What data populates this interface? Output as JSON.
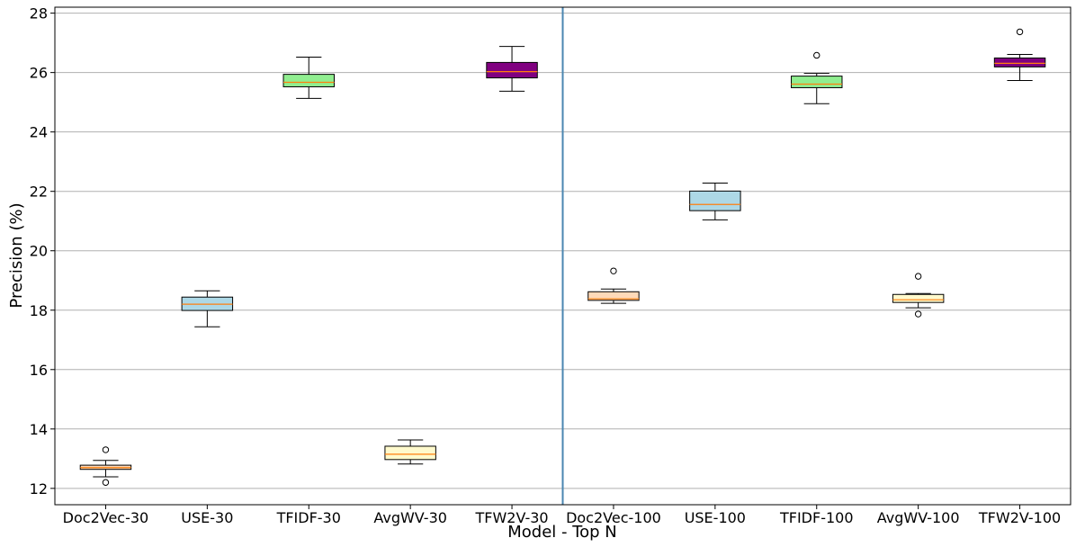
{
  "chart_data": {
    "type": "box",
    "x_label": "Model - Top N",
    "y_label": "Precision (%)",
    "categories": [
      "Doc2Vec-30",
      "USE-30",
      "TFIDF-30",
      "AvgWV-30",
      "TFW2V-30",
      "Doc2Vec-100",
      "USE-100",
      "TFIDF-100",
      "AvgWV-100",
      "TFW2V-100"
    ],
    "colors": [
      "#ffdab9",
      "#add8e6",
      "#90ee90",
      "#fffacd",
      "#800080",
      "#ffdab9",
      "#add8e6",
      "#90ee90",
      "#fffacd",
      "#800080"
    ],
    "median_color": "#ff7f0e",
    "boxes": [
      {
        "whislo": 12.39,
        "q1": 12.64,
        "median": 12.7,
        "q3": 12.78,
        "whishi": 12.94,
        "fliers": [
          13.3,
          12.2
        ]
      },
      {
        "whislo": 17.44,
        "q1": 17.99,
        "median": 18.2,
        "q3": 18.44,
        "whishi": 18.65,
        "fliers": []
      },
      {
        "whislo": 25.13,
        "q1": 25.52,
        "median": 25.67,
        "q3": 25.94,
        "whishi": 26.52,
        "fliers": []
      },
      {
        "whislo": 12.82,
        "q1": 12.97,
        "median": 13.15,
        "q3": 13.42,
        "whishi": 13.63,
        "fliers": []
      },
      {
        "whislo": 25.37,
        "q1": 25.82,
        "median": 26.03,
        "q3": 26.34,
        "whishi": 26.88,
        "fliers": []
      },
      {
        "whislo": 18.23,
        "q1": 18.33,
        "median": 18.38,
        "q3": 18.62,
        "whishi": 18.71,
        "fliers": [
          19.32
        ]
      },
      {
        "whislo": 21.04,
        "q1": 21.35,
        "median": 21.56,
        "q3": 22.01,
        "whishi": 22.28,
        "fliers": []
      },
      {
        "whislo": 24.95,
        "q1": 25.49,
        "median": 25.61,
        "q3": 25.88,
        "whishi": 25.97,
        "fliers": [
          26.58
        ]
      },
      {
        "whislo": 18.08,
        "q1": 18.26,
        "median": 18.35,
        "q3": 18.53,
        "whishi": 18.56,
        "fliers": [
          19.14,
          17.87
        ]
      },
      {
        "whislo": 25.73,
        "q1": 26.19,
        "median": 26.31,
        "q3": 26.49,
        "whishi": 26.61,
        "fliers": [
          27.37
        ]
      }
    ],
    "vline_x": 5.5,
    "vline_color": "#4a86b0",
    "xlim": [
      0.5,
      10.5
    ],
    "ylim": [
      11.45,
      28.2
    ],
    "yticks": [
      12,
      14,
      16,
      18,
      20,
      22,
      24,
      26,
      28
    ],
    "grid": true
  }
}
